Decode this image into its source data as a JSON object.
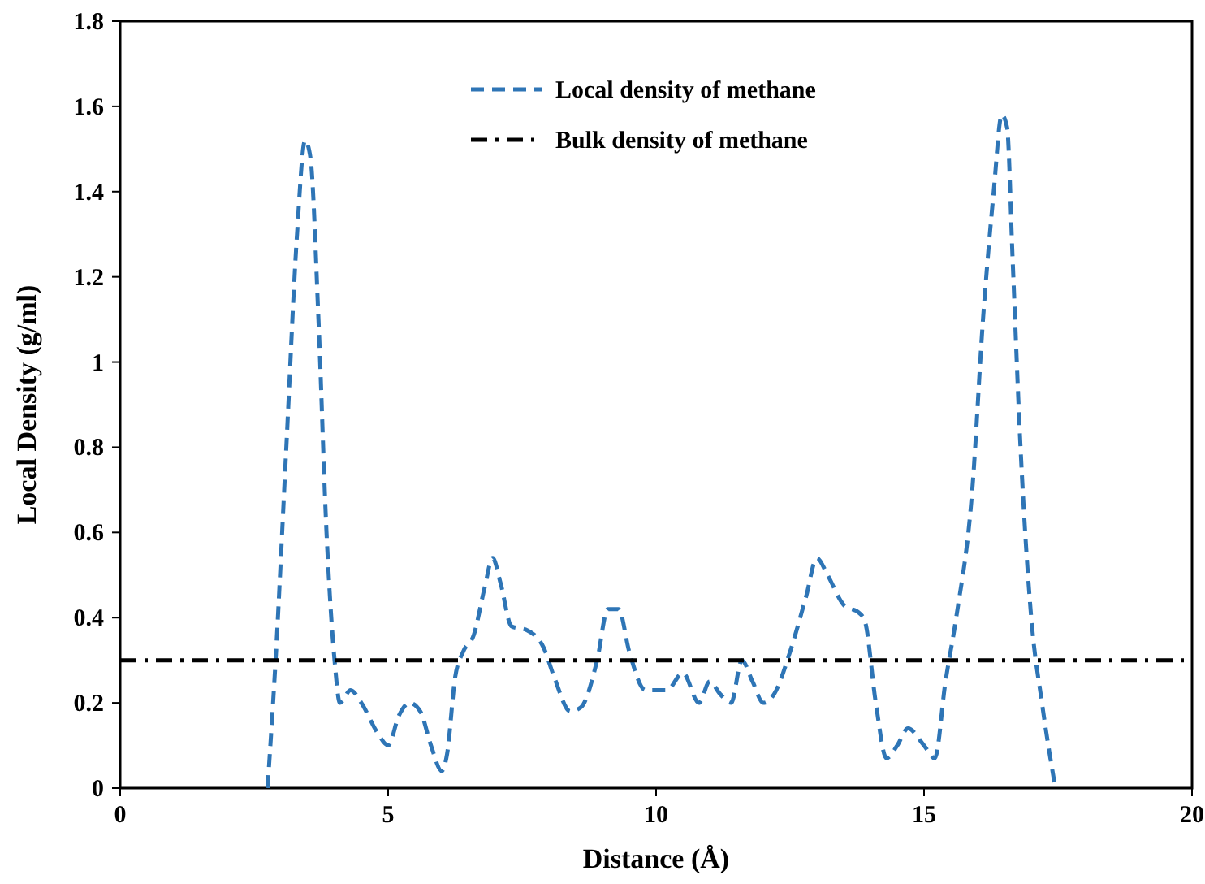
{
  "chart_data": {
    "type": "line",
    "xlabel": "Distance (Å)",
    "ylabel": "Local Density (g/ml)",
    "xlim": [
      0,
      20
    ],
    "xticks": [
      0,
      5,
      10,
      15,
      20
    ],
    "ylim": [
      0,
      1.8
    ],
    "yticks": [
      0,
      0.2,
      0.4,
      0.6,
      0.8,
      1,
      1.2,
      1.4,
      1.6,
      1.8
    ],
    "grid": false,
    "legend": "top",
    "series": [
      {
        "name": "Local density of methane",
        "color": "#2e75b6",
        "line_style": "dashed",
        "x": [
          2.75,
          2.9,
          3.1,
          3.3,
          3.45,
          3.55,
          3.7,
          3.85,
          4.0,
          4.1,
          4.3,
          4.5,
          4.8,
          5.0,
          5.2,
          5.4,
          5.6,
          5.8,
          6.0,
          6.1,
          6.25,
          6.4,
          6.6,
          6.8,
          6.95,
          7.1,
          7.3,
          7.6,
          7.9,
          8.1,
          8.4,
          8.6,
          8.9,
          9.1,
          9.3,
          9.5,
          9.8,
          10.2,
          10.5,
          10.8,
          11.0,
          11.2,
          11.4,
          11.6,
          11.8,
          12.0,
          12.2,
          12.5,
          12.8,
          13.0,
          13.2,
          13.5,
          13.8,
          13.9,
          14.1,
          14.3,
          14.5,
          14.7,
          15.0,
          15.2,
          15.4,
          15.6,
          15.9,
          16.1,
          16.3,
          16.45,
          16.55,
          16.65,
          16.8,
          17.0,
          17.2,
          17.45
        ],
        "values": [
          0,
          0.3,
          0.8,
          1.3,
          1.52,
          1.48,
          1.1,
          0.6,
          0.3,
          0.2,
          0.23,
          0.2,
          0.13,
          0.1,
          0.17,
          0.2,
          0.18,
          0.1,
          0.04,
          0.08,
          0.26,
          0.32,
          0.36,
          0.47,
          0.54,
          0.48,
          0.38,
          0.37,
          0.33,
          0.26,
          0.18,
          0.19,
          0.3,
          0.42,
          0.42,
          0.32,
          0.23,
          0.23,
          0.27,
          0.2,
          0.25,
          0.22,
          0.2,
          0.3,
          0.25,
          0.2,
          0.22,
          0.32,
          0.45,
          0.54,
          0.5,
          0.43,
          0.41,
          0.39,
          0.2,
          0.07,
          0.1,
          0.14,
          0.1,
          0.07,
          0.25,
          0.4,
          0.7,
          1.1,
          1.4,
          1.58,
          1.55,
          1.25,
          0.8,
          0.4,
          0.2,
          0
        ]
      },
      {
        "name": "Bulk density of methane",
        "color": "#000000",
        "line_style": "dashdot",
        "x": [
          0,
          20
        ],
        "values": [
          0.3,
          0.3
        ]
      }
    ]
  }
}
